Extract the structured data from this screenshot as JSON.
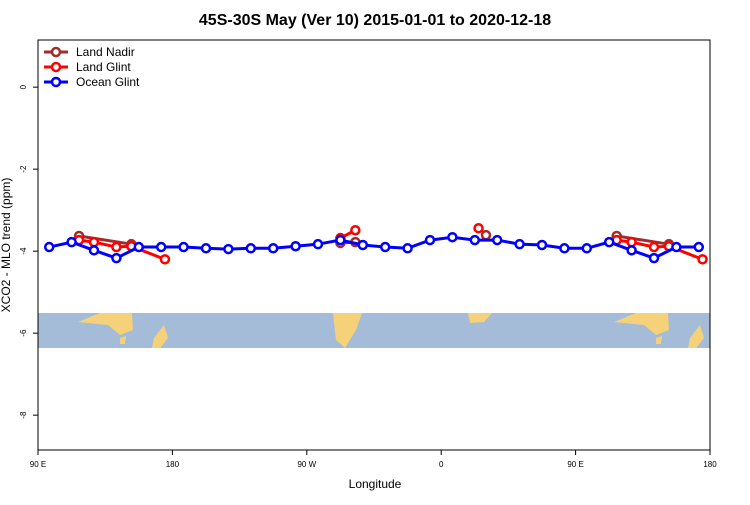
{
  "chart_data": {
    "type": "line",
    "title": "45S-30S May (Ver 10)   2015-01-01 to 2020-12-18",
    "xlabel": "Longitude",
    "ylabel": "XCO2 - MLO trend (ppm)",
    "xlim": [
      90,
      540
    ],
    "ylim": [
      -8.85,
      1.15
    ],
    "xticks": [
      {
        "value": 90,
        "label": "90 E"
      },
      180,
      {
        "value": 270,
        "label": "90 W"
      },
      {
        "value": 360,
        "label": "0"
      },
      {
        "value": 450,
        "label": "90 E"
      },
      {
        "value": 540,
        "label": "180"
      }
    ],
    "yticks": [
      0,
      -2,
      -4,
      -6,
      -8
    ],
    "legend": "top-left",
    "series": [
      {
        "name": "Land Nadir",
        "color": "#a52a2a",
        "x": [
          117.5,
          152.5,
          null,
          292.5,
          302.5,
          null,
          390,
          null,
          477.5,
          512.5
        ],
        "values": [
          -3.63,
          -3.83,
          null,
          -3.8,
          -3.78,
          null,
          -3.61,
          null,
          -3.63,
          -3.83
        ]
      },
      {
        "name": "Land Glint",
        "color": "#ff0000",
        "x": [
          117.5,
          127.5,
          142.5,
          152.5,
          175,
          null,
          292.5,
          302.5,
          null,
          385,
          null,
          477.5,
          487.5,
          502.5,
          512.5,
          535
        ],
        "values": [
          -3.73,
          -3.78,
          -3.9,
          -3.88,
          -4.2,
          null,
          -3.68,
          -3.49,
          null,
          -3.44,
          null,
          -3.73,
          -3.78,
          -3.9,
          -3.88,
          -4.2
        ]
      },
      {
        "name": "Ocean Glint",
        "color": "#0000ff",
        "x": [
          97.5,
          112.5,
          127.5,
          142.5,
          157.5,
          172.5,
          187.5,
          202.5,
          217.5,
          232.5,
          247.5,
          262.5,
          277.5,
          292.5,
          307.5,
          322.5,
          337.5,
          352.5,
          367.5,
          382.5,
          397.5,
          412.5,
          427.5,
          442.5,
          457.5,
          472.5,
          487.5,
          502.5,
          517.5,
          532.5
        ],
        "values": [
          -3.9,
          -3.78,
          -3.98,
          -4.17,
          -3.9,
          -3.9,
          -3.9,
          -3.93,
          -3.95,
          -3.93,
          -3.93,
          -3.88,
          -3.83,
          -3.73,
          -3.85,
          -3.9,
          -3.93,
          -3.73,
          -3.66,
          -3.73,
          -3.73,
          -3.83,
          -3.85,
          -3.93,
          -3.93,
          -3.78,
          -3.98,
          -4.17,
          -3.9,
          -3.9
        ]
      }
    ]
  }
}
